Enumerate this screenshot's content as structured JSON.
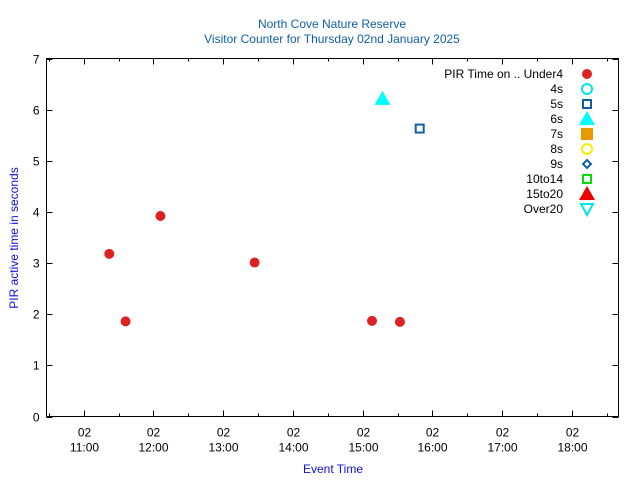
{
  "chart_data": {
    "type": "scatter",
    "title": "North Cove Nature Reserve",
    "subtitle": "Visitor Counter for Thursday 02nd January 2025",
    "xlabel": "Event Time",
    "ylabel": "PIR active time in seconds",
    "ylim": [
      0,
      7
    ],
    "yticks": [
      0,
      1,
      2,
      3,
      4,
      5,
      6,
      7
    ],
    "xlim": [
      "10:28",
      "18:40"
    ],
    "xticks": [
      {
        "time": "11:00",
        "line1": "02",
        "line2": "11:00"
      },
      {
        "time": "12:00",
        "line1": "02",
        "line2": "12:00"
      },
      {
        "time": "13:00",
        "line1": "02",
        "line2": "13:00"
      },
      {
        "time": "14:00",
        "line1": "02",
        "line2": "14:00"
      },
      {
        "time": "15:00",
        "line1": "02",
        "line2": "15:00"
      },
      {
        "time": "16:00",
        "line1": "02",
        "line2": "16:00"
      },
      {
        "time": "17:00",
        "line1": "02",
        "line2": "17:00"
      },
      {
        "time": "18:00",
        "line1": "02",
        "line2": "18:00"
      }
    ],
    "grid": false,
    "legend_position": "top-right",
    "legend_title": "PIR Time on ..",
    "series": [
      {
        "name": "Under4",
        "color": "#dd2222",
        "marker": "filled-circle",
        "points": [
          [
            "11:22",
            3.18
          ],
          [
            "11:36",
            1.86
          ],
          [
            "12:06",
            3.92
          ],
          [
            "13:27",
            3.01
          ],
          [
            "15:08",
            1.87
          ],
          [
            "15:32",
            1.85
          ]
        ]
      },
      {
        "name": "4s",
        "color": "#00e5ee",
        "marker": "open-circle",
        "points": []
      },
      {
        "name": "5s",
        "color": "#1060a8",
        "marker": "open-square",
        "points": [
          [
            "15:49",
            5.63
          ]
        ]
      },
      {
        "name": "6s",
        "color": "#00ffff",
        "marker": "filled-triangle",
        "points": [
          [
            "15:17",
            6.21
          ]
        ]
      },
      {
        "name": "7s",
        "color": "#e69a00",
        "marker": "filled-square",
        "points": []
      },
      {
        "name": "8s",
        "color": "#ffee00",
        "marker": "open-circle",
        "points": []
      },
      {
        "name": "9s",
        "color": "#1060a8",
        "marker": "open-diamond",
        "points": []
      },
      {
        "name": "10to14",
        "color": "#00dd00",
        "marker": "open-square",
        "points": []
      },
      {
        "name": "15to20",
        "color": "#ee0000",
        "marker": "filled-triangle",
        "points": []
      },
      {
        "name": "Over20",
        "color": "#00e5ee",
        "marker": "open-triangle-down",
        "points": []
      }
    ]
  }
}
